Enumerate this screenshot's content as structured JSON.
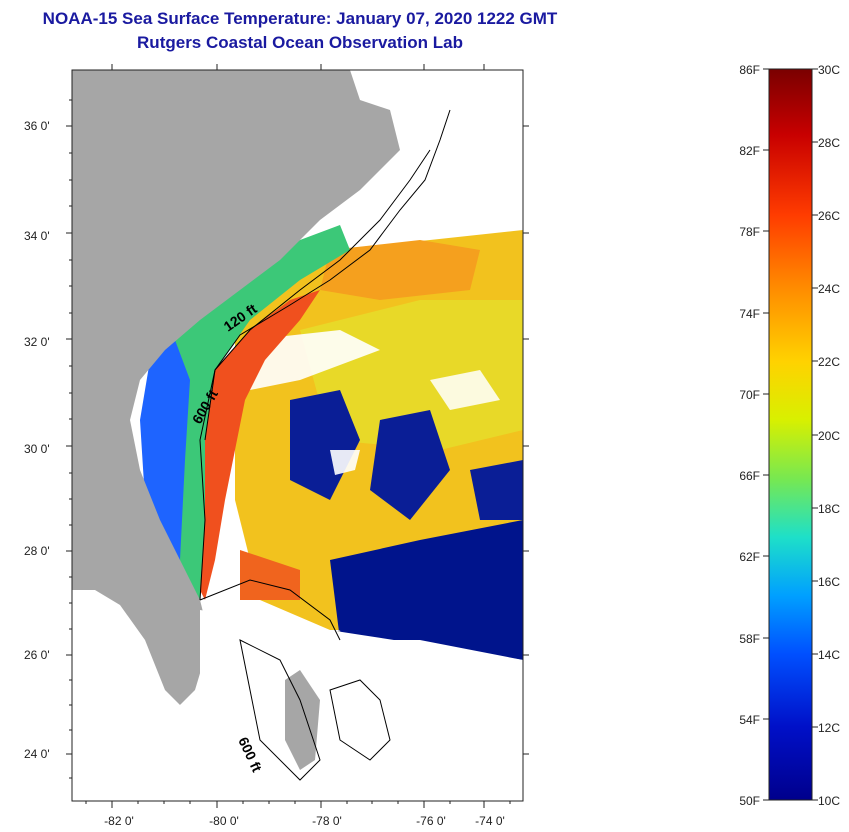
{
  "title": {
    "line1": "NOAA-15 Sea Surface Temperature:  January 07, 2020 1222 GMT",
    "line2": "Rutgers Coastal Ocean Observation Lab"
  },
  "map": {
    "lon_range": [
      -83,
      -73
    ],
    "lat_range": [
      23,
      37
    ],
    "lon_ticks": [
      "-82 0'",
      "-80 0'",
      "-78 0'",
      "-76 0'",
      "-74 0'"
    ],
    "lat_ticks": [
      "36 0'",
      "34 0'",
      "32 0'",
      "30 0'",
      "28 0'",
      "26 0'",
      "24 0'"
    ],
    "contours": {
      "c120": "120 ft",
      "c600a": "600 ft",
      "c600b": "600 ft"
    },
    "colors": {
      "land": "#a6a6a6",
      "cloud": "#ffffff",
      "gulf_stream": "#f0501e",
      "warm": "#f5a01e",
      "cold": "#00148c"
    }
  },
  "colorbar": {
    "fahrenheit": [
      "86F",
      "82F",
      "78F",
      "74F",
      "70F",
      "66F",
      "62F",
      "58F",
      "54F",
      "50F"
    ],
    "celsius": [
      "30C",
      "28C",
      "26C",
      "24C",
      "22C",
      "20C",
      "18C",
      "16C",
      "14C",
      "12C",
      "10C"
    ],
    "gradient": [
      "#7a0000",
      "#c80000",
      "#ff3c00",
      "#ff8c00",
      "#ffd200",
      "#d8f000",
      "#78e850",
      "#1ee0c8",
      "#00a0ff",
      "#0050ff",
      "#0010c8",
      "#00008c"
    ]
  }
}
